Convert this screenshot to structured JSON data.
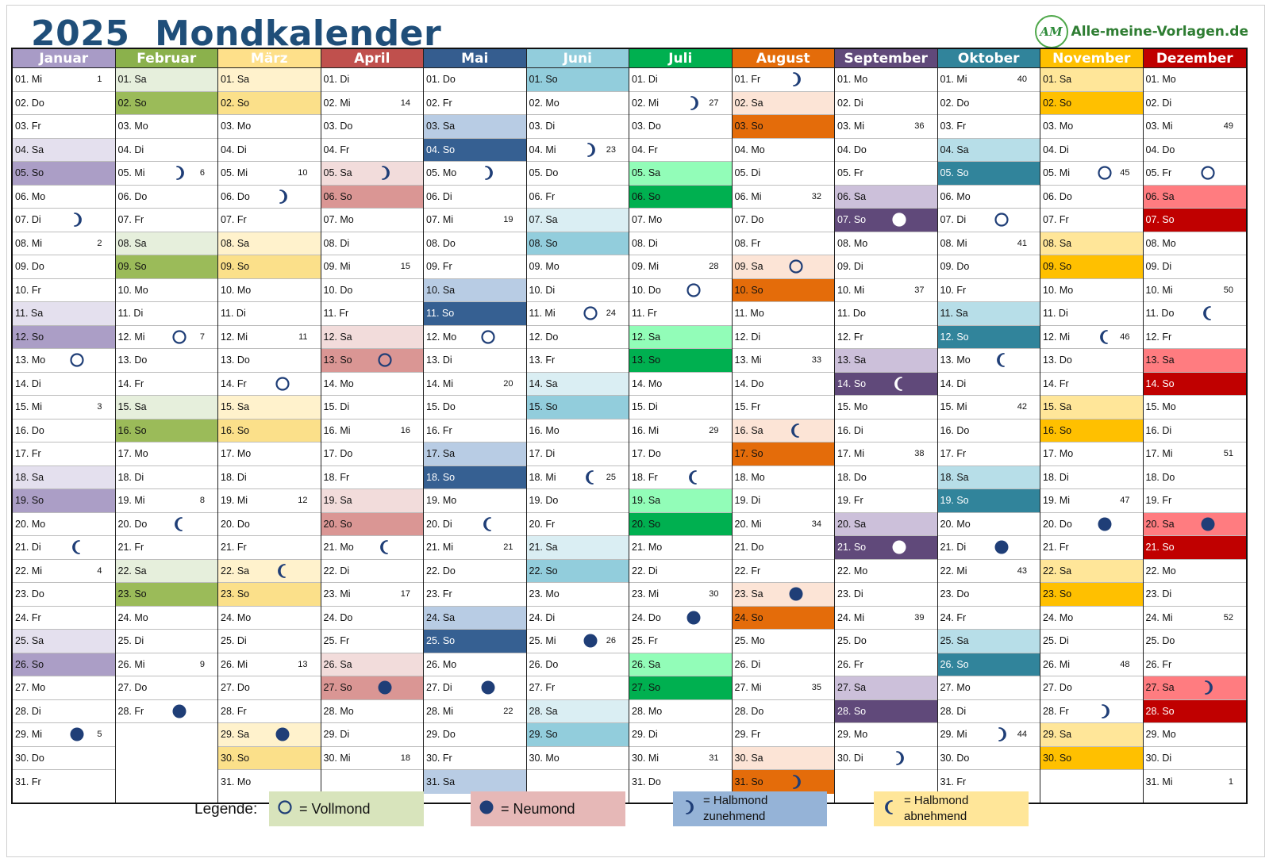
{
  "header": {
    "title": "2025  Mondkalender",
    "brand_logo": "AM",
    "brand": "Alle-meine-Vorlagen.de"
  },
  "colors": {
    "moon": "#1f3e77",
    "title": "#1f4e79"
  },
  "months": [
    {
      "name": "Januar",
      "head": "#a89bc6",
      "sa": "#e4e0ee",
      "so": "#ab9ec6",
      "first": 3
    },
    {
      "name": "Februar",
      "head": "#8bb14c",
      "sa": "#e6efdc",
      "so": "#9bbb59",
      "first": 6
    },
    {
      "name": "März",
      "head": "#fee08a",
      "sa": "#fff2cc",
      "so": "#fbe08a",
      "first": 6
    },
    {
      "name": "April",
      "head": "#c0504d",
      "sa": "#f2dcdb",
      "so": "#da9694",
      "first": 2
    },
    {
      "name": "Mai",
      "head": "#355d8f",
      "sa": "#b8cce4",
      "so": "#366092",
      "first": 4
    },
    {
      "name": "Juni",
      "head": "#92cddc",
      "sa": "#daeef3",
      "so": "#92cddc",
      "first": 0
    },
    {
      "name": "Juli",
      "head": "#00b050",
      "sa": "#92fdb8",
      "so": "#00b050",
      "first": 2
    },
    {
      "name": "August",
      "head": "#e46c0a",
      "sa": "#fce4d6",
      "so": "#e46c0a",
      "first": 5
    },
    {
      "name": "September",
      "head": "#60497a",
      "sa": "#ccc0da",
      "so": "#60497a",
      "first": 1
    },
    {
      "name": "Oktober",
      "head": "#31849b",
      "sa": "#b7dee8",
      "so": "#31849b",
      "first": 3
    },
    {
      "name": "November",
      "head": "#ffc000",
      "sa": "#ffe699",
      "so": "#ffc000",
      "first": 6
    },
    {
      "name": "Dezember",
      "head": "#c00000",
      "sa": "#ff7c80",
      "so": "#c00000",
      "first": 1
    }
  ],
  "weekday_abbr": [
    "So",
    "Mo",
    "Di",
    "Mi",
    "Do",
    "Fr",
    "Sa"
  ],
  "week_numbers": [
    {
      "1": "1",
      "8": "2",
      "15": "3",
      "22": "4",
      "29": "5"
    },
    {
      "5": "6",
      "12": "7",
      "19": "8",
      "26": "9"
    },
    {
      "5": "10",
      "12": "11",
      "19": "12",
      "26": "13"
    },
    {
      "2": "14",
      "9": "15",
      "16": "16",
      "23": "17",
      "30": "18"
    },
    {
      "7": "19",
      "14": "20",
      "21": "21",
      "28": "22"
    },
    {
      "4": "23",
      "11": "24",
      "18": "25",
      "25": "26"
    },
    {
      "2": "27",
      "9": "28",
      "16": "29",
      "23": "30",
      "30": "31"
    },
    {
      "6": "32",
      "13": "33",
      "20": "34",
      "27": "35"
    },
    {
      "3": "36",
      "10": "37",
      "17": "38",
      "24": "39"
    },
    {
      "1": "40",
      "8": "41",
      "15": "42",
      "22": "43",
      "29": "44"
    },
    {
      "5": "45",
      "12": "46",
      "19": "47",
      "26": "48"
    },
    {
      "3": "49",
      "10": "50",
      "17": "51",
      "24": "52",
      "31": "1"
    }
  ],
  "moon_phases": [
    {
      "7": "wax",
      "13": "full",
      "21": "wane",
      "29": "new"
    },
    {
      "5": "wax",
      "12": "full",
      "20": "wane",
      "28": "new"
    },
    {
      "6": "wax",
      "14": "full",
      "22": "wane",
      "29": "new"
    },
    {
      "5": "wax",
      "13": "full",
      "21": "wane",
      "27": "new"
    },
    {
      "5": "wax",
      "12": "full",
      "20": "wane",
      "27": "new"
    },
    {
      "4": "wax",
      "11": "full",
      "18": "wane",
      "25": "new"
    },
    {
      "2": "wax",
      "10": "full",
      "18": "wane",
      "24": "new"
    },
    {
      "1": "wax",
      "9": "full",
      "16": "wane",
      "23": "new",
      "31": "wax"
    },
    {
      "7": "full",
      "14": "wane",
      "21": "new",
      "30": "wax"
    },
    {
      "7": "full",
      "13": "wane",
      "21": "new",
      "29": "wax"
    },
    {
      "5": "full",
      "12": "wane",
      "20": "new",
      "28": "wax"
    },
    {
      "5": "full",
      "11": "wane",
      "20": "new",
      "27": "wax"
    }
  ],
  "legend": {
    "label": "Legende:",
    "items": [
      {
        "phase": "full",
        "text": "= Vollmond",
        "bg": "#d8e4bc"
      },
      {
        "phase": "new",
        "text": "= Neumond",
        "bg": "#e6b8b7"
      },
      {
        "phase": "wax",
        "text1": "= Halbmond",
        "text2": "zunehmend",
        "bg": "#95b3d7"
      },
      {
        "phase": "wane",
        "text1": "= Halbmond",
        "text2": "abnehmend",
        "bg": "#ffe699"
      }
    ]
  }
}
